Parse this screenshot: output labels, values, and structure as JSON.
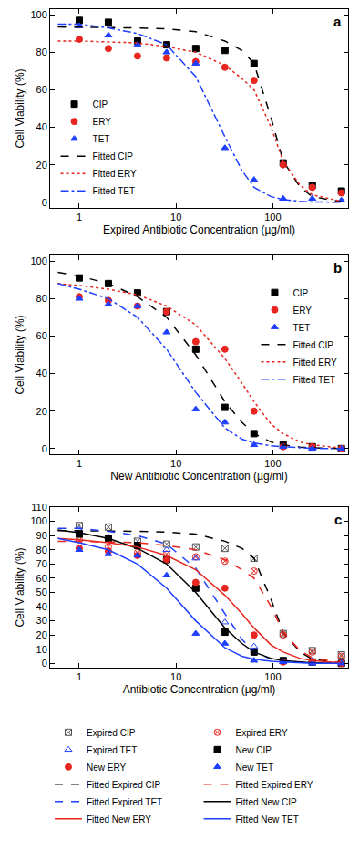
{
  "chart_data": [
    {
      "type": "scatter",
      "annotations": [
        "a"
      ],
      "x_label": "Expired Antibiotic Concentration (µg/ml)",
      "y_label": "Cell Viability (%)",
      "log": "x",
      "grid": false,
      "legend": "lower left",
      "xlim": [
        0.5,
        600
      ],
      "xticks": [
        1,
        10,
        100
      ],
      "ylim": [
        -3,
        103
      ],
      "yticks": [
        0,
        20,
        40,
        60,
        80,
        100
      ],
      "series": [
        {
          "name": "CIP",
          "type": "scatter",
          "color": "#000000",
          "marker": "square",
          "x": [
            1,
            2,
            4,
            8,
            16,
            32,
            64,
            128,
            256,
            512
          ],
          "values": [
            97,
            96,
            86,
            84,
            82,
            81,
            74,
            21,
            9,
            6
          ]
        },
        {
          "name": "ERY",
          "type": "scatter",
          "color": "#e8251f",
          "marker": "circle",
          "x": [
            1,
            2,
            4,
            8,
            16,
            32,
            64,
            128,
            256,
            512
          ],
          "values": [
            87,
            82,
            78,
            77,
            75,
            72,
            65,
            20,
            8,
            5
          ]
        },
        {
          "name": "TET",
          "type": "scatter",
          "color": "#1f3fff",
          "marker": "triangle-up",
          "x": [
            1,
            2,
            4,
            8,
            16,
            32,
            64,
            128,
            256,
            512
          ],
          "values": [
            94,
            89,
            84,
            80,
            74,
            29,
            12,
            2,
            2,
            1
          ]
        },
        {
          "name": "Fitted CIP",
          "type": "line",
          "color": "#000000",
          "line_style": "dash",
          "x": [
            0.6,
            1,
            2,
            4,
            8,
            16,
            32,
            48,
            64,
            96,
            128,
            192,
            256,
            512
          ],
          "values": [
            93.5,
            93.4,
            93.3,
            93,
            92.5,
            91,
            86,
            81,
            74,
            45,
            22,
            8,
            3,
            0.3
          ]
        },
        {
          "name": "Fitted ERY",
          "type": "line",
          "color": "#e8251f",
          "line_style": "dot",
          "x": [
            0.6,
            1,
            2,
            4,
            8,
            16,
            32,
            48,
            64,
            96,
            128,
            192,
            256,
            512
          ],
          "values": [
            86,
            86,
            85.5,
            85,
            83,
            80,
            73,
            66,
            60,
            40,
            22,
            9,
            4,
            0.5
          ]
        },
        {
          "name": "Fitted TET",
          "type": "line",
          "color": "#1f3fff",
          "line_style": "dashdot",
          "x": [
            0.6,
            1,
            2,
            4,
            8,
            16,
            32,
            48,
            64,
            96,
            128,
            192,
            256,
            512
          ],
          "values": [
            95,
            95,
            93,
            90,
            84,
            67,
            35,
            17,
            8,
            3,
            1.5,
            0.5,
            0.2,
            0
          ]
        }
      ]
    },
    {
      "type": "scatter",
      "annotations": [
        "b"
      ],
      "x_label": "New Antibiotic Concentration (µg/ml)",
      "y_label": "Cell Viability (%)",
      "log": "x",
      "grid": false,
      "legend": "upper right",
      "xlim": [
        0.5,
        600
      ],
      "xticks": [
        1,
        10,
        100
      ],
      "ylim": [
        -3,
        103
      ],
      "yticks": [
        0,
        20,
        40,
        60,
        80,
        100
      ],
      "series": [
        {
          "name": "CIP",
          "type": "scatter",
          "color": "#000000",
          "marker": "square",
          "x": [
            1,
            2,
            4,
            8,
            16,
            32,
            64,
            128,
            256,
            512
          ],
          "values": [
            91,
            88,
            83,
            73,
            53,
            22,
            8,
            2,
            1,
            0
          ]
        },
        {
          "name": "ERY",
          "type": "scatter",
          "color": "#e8251f",
          "marker": "circle",
          "x": [
            1,
            2,
            4,
            8,
            16,
            32,
            64,
            128,
            256,
            512
          ],
          "values": [
            81,
            79,
            76,
            73,
            57,
            53,
            20,
            1,
            1,
            0
          ]
        },
        {
          "name": "TET",
          "type": "scatter",
          "color": "#1f3fff",
          "marker": "triangle-up",
          "x": [
            1,
            2,
            4,
            8,
            16,
            32,
            64,
            128,
            256,
            512
          ],
          "values": [
            80,
            77,
            76,
            62,
            21,
            14,
            2,
            1,
            0,
            0
          ]
        },
        {
          "name": "Fitted CIP",
          "type": "line",
          "color": "#000000",
          "line_style": "dash",
          "x": [
            0.6,
            1,
            2,
            4,
            8,
            16,
            32,
            48,
            64,
            96,
            128,
            192,
            256,
            512
          ],
          "values": [
            94,
            92,
            88,
            81,
            70,
            50,
            25,
            14,
            8,
            3.5,
            2,
            0.8,
            0.4,
            0
          ]
        },
        {
          "name": "Fitted ERY",
          "type": "line",
          "color": "#e8251f",
          "line_style": "dot",
          "x": [
            0.6,
            1,
            2,
            4,
            8,
            16,
            32,
            48,
            64,
            96,
            128,
            192,
            256,
            512
          ],
          "values": [
            88,
            87,
            85,
            82,
            76,
            66,
            48,
            35,
            25,
            13,
            8,
            3.5,
            2,
            0.3
          ]
        },
        {
          "name": "Fitted TET",
          "type": "line",
          "color": "#1f3fff",
          "line_style": "dashdot",
          "x": [
            0.6,
            1,
            2,
            4,
            8,
            16,
            32,
            48,
            64,
            96,
            128,
            192,
            256,
            512
          ],
          "values": [
            88,
            85,
            80,
            70,
            53,
            30,
            11,
            5,
            3,
            1.5,
            1,
            0.3,
            0.1,
            0
          ]
        }
      ]
    },
    {
      "type": "scatter",
      "annotations": [
        "c"
      ],
      "x_label": "Antibiotic Concentration (µg/ml)",
      "y_label": "Cell Viability (%)",
      "log": "x",
      "grid": false,
      "legend": "bottom",
      "xlim": [
        0.5,
        600
      ],
      "xticks": [
        1,
        10,
        100
      ],
      "ylim": [
        -3,
        110
      ],
      "yticks": [
        0,
        10,
        20,
        30,
        40,
        50,
        60,
        70,
        80,
        90,
        100,
        110
      ],
      "series": [
        {
          "name": "Expired CIP",
          "type": "scatter",
          "color": "#555555",
          "marker": "square-x-open",
          "x": [
            1,
            2,
            4,
            8,
            16,
            32,
            64,
            128,
            256,
            512
          ],
          "values": [
            97,
            96,
            86,
            84,
            82,
            81,
            74,
            21,
            9,
            6
          ]
        },
        {
          "name": "Expired ERY",
          "type": "scatter",
          "color": "#e8251f",
          "marker": "circle-x-open",
          "x": [
            1,
            2,
            4,
            8,
            16,
            32,
            64,
            128,
            256,
            512
          ],
          "values": [
            87,
            82,
            78,
            77,
            75,
            72,
            65,
            20,
            8,
            5
          ]
        },
        {
          "name": "Expired TET",
          "type": "scatter",
          "color": "#1f3fff",
          "marker": "triangle-up-open",
          "x": [
            1,
            2,
            4,
            8,
            16,
            32,
            64,
            128,
            256,
            512
          ],
          "values": [
            94,
            89,
            84,
            80,
            74,
            29,
            12,
            2,
            2,
            1
          ]
        },
        {
          "name": "New CIP",
          "type": "scatter",
          "color": "#000000",
          "marker": "square",
          "x": [
            1,
            2,
            4,
            8,
            16,
            32,
            64,
            128,
            256,
            512
          ],
          "values": [
            91,
            88,
            83,
            73,
            53,
            22,
            8,
            2,
            1,
            0
          ]
        },
        {
          "name": "New ERY",
          "type": "scatter",
          "color": "#e8251f",
          "marker": "circle",
          "x": [
            1,
            2,
            4,
            8,
            16,
            32,
            64,
            128,
            256,
            512
          ],
          "values": [
            81,
            79,
            76,
            73,
            57,
            53,
            20,
            1,
            1,
            0
          ]
        },
        {
          "name": "New TET",
          "type": "scatter",
          "color": "#1f3fff",
          "marker": "triangle-up",
          "x": [
            1,
            2,
            4,
            8,
            16,
            32,
            64,
            128,
            256,
            512
          ],
          "values": [
            80,
            77,
            76,
            62,
            21,
            14,
            2,
            1,
            0,
            0
          ]
        },
        {
          "name": "Fitted Expired CIP",
          "type": "line",
          "color": "#000000",
          "line_style": "dash",
          "x": [
            0.6,
            1,
            2,
            4,
            8,
            16,
            32,
            48,
            64,
            96,
            128,
            192,
            256,
            512
          ],
          "values": [
            93.5,
            93.4,
            93.3,
            93,
            92.5,
            91,
            86,
            81,
            74,
            45,
            22,
            8,
            3,
            0.3
          ]
        },
        {
          "name": "Fitted Expired ERY",
          "type": "line",
          "color": "#e8251f",
          "line_style": "dash",
          "x": [
            0.6,
            1,
            2,
            4,
            8,
            16,
            32,
            48,
            64,
            96,
            128,
            192,
            256,
            512
          ],
          "values": [
            86,
            86,
            85.5,
            85,
            83,
            80,
            73,
            66,
            60,
            40,
            22,
            9,
            4,
            0.5
          ]
        },
        {
          "name": "Fitted Expired TET",
          "type": "line",
          "color": "#1f3fff",
          "line_style": "dash",
          "x": [
            0.6,
            1,
            2,
            4,
            8,
            16,
            32,
            48,
            64,
            96,
            128,
            192,
            256,
            512
          ],
          "values": [
            95,
            95,
            93,
            90,
            84,
            67,
            35,
            17,
            8,
            3,
            1.5,
            0.5,
            0.2,
            0
          ]
        },
        {
          "name": "Fitted New CIP",
          "type": "line",
          "color": "#000000",
          "line_style": "solid",
          "x": [
            0.6,
            1,
            2,
            4,
            8,
            16,
            32,
            48,
            64,
            96,
            128,
            192,
            256,
            512
          ],
          "values": [
            94,
            92,
            88,
            81,
            70,
            50,
            25,
            14,
            8,
            3.5,
            2,
            0.8,
            0.4,
            0
          ]
        },
        {
          "name": "Fitted New ERY",
          "type": "line",
          "color": "#e8251f",
          "line_style": "solid",
          "x": [
            0.6,
            1,
            2,
            4,
            8,
            16,
            32,
            48,
            64,
            96,
            128,
            192,
            256,
            512
          ],
          "values": [
            88,
            87,
            85,
            82,
            76,
            66,
            48,
            35,
            25,
            13,
            8,
            3.5,
            2,
            0.3
          ]
        },
        {
          "name": "Fitted New TET",
          "type": "line",
          "color": "#1f3fff",
          "line_style": "solid",
          "x": [
            0.6,
            1,
            2,
            4,
            8,
            16,
            32,
            48,
            64,
            96,
            128,
            192,
            256,
            512
          ],
          "values": [
            88,
            85,
            80,
            70,
            53,
            30,
            11,
            5,
            3,
            1.5,
            1,
            0.3,
            0.1,
            0
          ]
        }
      ]
    }
  ]
}
